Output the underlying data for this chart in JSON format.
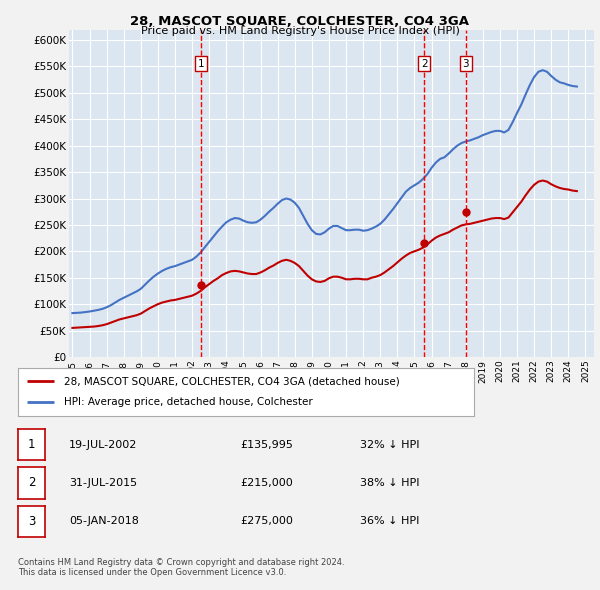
{
  "title": "28, MASCOT SQUARE, COLCHESTER, CO4 3GA",
  "subtitle": "Price paid vs. HM Land Registry's House Price Index (HPI)",
  "fig_bg_color": "#f2f2f2",
  "plot_bg_color": "#dce6f1",
  "grid_color": "#ffffff",
  "ylim": [
    0,
    620000
  ],
  "yticks": [
    0,
    50000,
    100000,
    150000,
    200000,
    250000,
    300000,
    350000,
    400000,
    450000,
    500000,
    550000,
    600000
  ],
  "ytick_labels": [
    "£0",
    "£50K",
    "£100K",
    "£150K",
    "£200K",
    "£250K",
    "£300K",
    "£350K",
    "£400K",
    "£450K",
    "£500K",
    "£550K",
    "£600K"
  ],
  "xlim_start": 1994.8,
  "xlim_end": 2025.5,
  "transactions": [
    {
      "date_num": 2002.54,
      "price": 135995,
      "label": "1",
      "date_str": "19-JUL-2002",
      "price_str": "£135,995",
      "pct_str": "32% ↓ HPI"
    },
    {
      "date_num": 2015.58,
      "price": 215000,
      "label": "2",
      "date_str": "31-JUL-2015",
      "price_str": "£215,000",
      "pct_str": "38% ↓ HPI"
    },
    {
      "date_num": 2018.01,
      "price": 275000,
      "label": "3",
      "date_str": "05-JAN-2018",
      "price_str": "£275,000",
      "pct_str": "36% ↓ HPI"
    }
  ],
  "hpi_line_color": "#4472c4",
  "price_line_color": "#c00000",
  "vline_color": "#ff0000",
  "marker_color": "#c00000",
  "legend_label_red": "28, MASCOT SQUARE, COLCHESTER, CO4 3GA (detached house)",
  "legend_label_blue": "HPI: Average price, detached house, Colchester",
  "footer": "Contains HM Land Registry data © Crown copyright and database right 2024.\nThis data is licensed under the Open Government Licence v3.0.",
  "hpi_data_x": [
    1995.0,
    1995.25,
    1995.5,
    1995.75,
    1996.0,
    1996.25,
    1996.5,
    1996.75,
    1997.0,
    1997.25,
    1997.5,
    1997.75,
    1998.0,
    1998.25,
    1998.5,
    1998.75,
    1999.0,
    1999.25,
    1999.5,
    1999.75,
    2000.0,
    2000.25,
    2000.5,
    2000.75,
    2001.0,
    2001.25,
    2001.5,
    2001.75,
    2002.0,
    2002.25,
    2002.5,
    2002.75,
    2003.0,
    2003.25,
    2003.5,
    2003.75,
    2004.0,
    2004.25,
    2004.5,
    2004.75,
    2005.0,
    2005.25,
    2005.5,
    2005.75,
    2006.0,
    2006.25,
    2006.5,
    2006.75,
    2007.0,
    2007.25,
    2007.5,
    2007.75,
    2008.0,
    2008.25,
    2008.5,
    2008.75,
    2009.0,
    2009.25,
    2009.5,
    2009.75,
    2010.0,
    2010.25,
    2010.5,
    2010.75,
    2011.0,
    2011.25,
    2011.5,
    2011.75,
    2012.0,
    2012.25,
    2012.5,
    2012.75,
    2013.0,
    2013.25,
    2013.5,
    2013.75,
    2014.0,
    2014.25,
    2014.5,
    2014.75,
    2015.0,
    2015.25,
    2015.5,
    2015.75,
    2016.0,
    2016.25,
    2016.5,
    2016.75,
    2017.0,
    2017.25,
    2017.5,
    2017.75,
    2018.0,
    2018.25,
    2018.5,
    2018.75,
    2019.0,
    2019.25,
    2019.5,
    2019.75,
    2020.0,
    2020.25,
    2020.5,
    2020.75,
    2021.0,
    2021.25,
    2021.5,
    2021.75,
    2022.0,
    2022.25,
    2022.5,
    2022.75,
    2023.0,
    2023.25,
    2023.5,
    2023.75,
    2024.0,
    2024.25,
    2024.5
  ],
  "hpi_data_y": [
    83000,
    83500,
    84000,
    85000,
    86000,
    87500,
    89000,
    91000,
    94000,
    98000,
    103000,
    108000,
    112000,
    116000,
    120000,
    124000,
    129000,
    137000,
    145000,
    152000,
    158000,
    163000,
    167000,
    170000,
    172000,
    175000,
    178000,
    181000,
    184000,
    190000,
    198000,
    208000,
    218000,
    228000,
    238000,
    247000,
    255000,
    260000,
    263000,
    262000,
    258000,
    255000,
    254000,
    255000,
    260000,
    267000,
    275000,
    282000,
    290000,
    297000,
    300000,
    298000,
    292000,
    282000,
    267000,
    252000,
    240000,
    233000,
    232000,
    236000,
    243000,
    248000,
    248000,
    244000,
    240000,
    240000,
    241000,
    241000,
    239000,
    240000,
    243000,
    247000,
    252000,
    260000,
    270000,
    280000,
    291000,
    302000,
    313000,
    320000,
    325000,
    330000,
    337000,
    346000,
    358000,
    368000,
    375000,
    378000,
    385000,
    393000,
    400000,
    405000,
    408000,
    410000,
    413000,
    416000,
    420000,
    423000,
    426000,
    428000,
    428000,
    425000,
    430000,
    445000,
    462000,
    478000,
    497000,
    515000,
    530000,
    540000,
    543000,
    540000,
    532000,
    525000,
    520000,
    518000,
    515000,
    513000,
    512000
  ],
  "price_data_x": [
    1995.0,
    1995.25,
    1995.5,
    1995.75,
    1996.0,
    1996.25,
    1996.5,
    1996.75,
    1997.0,
    1997.25,
    1997.5,
    1997.75,
    1998.0,
    1998.25,
    1998.5,
    1998.75,
    1999.0,
    1999.25,
    1999.5,
    1999.75,
    2000.0,
    2000.25,
    2000.5,
    2000.75,
    2001.0,
    2001.25,
    2001.5,
    2001.75,
    2002.0,
    2002.25,
    2002.5,
    2002.75,
    2003.0,
    2003.25,
    2003.5,
    2003.75,
    2004.0,
    2004.25,
    2004.5,
    2004.75,
    2005.0,
    2005.25,
    2005.5,
    2005.75,
    2006.0,
    2006.25,
    2006.5,
    2006.75,
    2007.0,
    2007.25,
    2007.5,
    2007.75,
    2008.0,
    2008.25,
    2008.5,
    2008.75,
    2009.0,
    2009.25,
    2009.5,
    2009.75,
    2010.0,
    2010.25,
    2010.5,
    2010.75,
    2011.0,
    2011.25,
    2011.5,
    2011.75,
    2012.0,
    2012.25,
    2012.5,
    2012.75,
    2013.0,
    2013.25,
    2013.5,
    2013.75,
    2014.0,
    2014.25,
    2014.5,
    2014.75,
    2015.0,
    2015.25,
    2015.5,
    2015.75,
    2016.0,
    2016.25,
    2016.5,
    2016.75,
    2017.0,
    2017.25,
    2017.5,
    2017.75,
    2018.0,
    2018.25,
    2018.5,
    2018.75,
    2019.0,
    2019.25,
    2019.5,
    2019.75,
    2020.0,
    2020.25,
    2020.5,
    2020.75,
    2021.0,
    2021.25,
    2021.5,
    2021.75,
    2022.0,
    2022.25,
    2022.5,
    2022.75,
    2023.0,
    2023.25,
    2023.5,
    2023.75,
    2024.0,
    2024.25,
    2024.5
  ],
  "price_data_y": [
    55000,
    55500,
    56000,
    56500,
    57000,
    57500,
    58500,
    60000,
    62000,
    65000,
    68000,
    71000,
    73000,
    75000,
    77000,
    79000,
    82000,
    87000,
    92000,
    96000,
    100000,
    103000,
    105000,
    107000,
    108000,
    110000,
    112000,
    114000,
    116000,
    120000,
    125000,
    132000,
    138000,
    144000,
    149000,
    155000,
    159000,
    162000,
    163000,
    162000,
    160000,
    158000,
    157000,
    157000,
    160000,
    164000,
    169000,
    173000,
    178000,
    182000,
    184000,
    182000,
    178000,
    172000,
    163000,
    154000,
    147000,
    143000,
    142000,
    144000,
    149000,
    152000,
    152000,
    150000,
    147000,
    147000,
    148000,
    148000,
    147000,
    147000,
    150000,
    152000,
    155000,
    160000,
    166000,
    172000,
    179000,
    186000,
    192000,
    197000,
    200000,
    203000,
    207000,
    213000,
    220000,
    226000,
    230000,
    233000,
    236000,
    241000,
    245000,
    249000,
    251000,
    252000,
    254000,
    256000,
    258000,
    260000,
    262000,
    263000,
    263000,
    261000,
    264000,
    274000,
    284000,
    294000,
    306000,
    317000,
    326000,
    332000,
    334000,
    332000,
    327000,
    323000,
    320000,
    318000,
    317000,
    315000,
    314000
  ]
}
